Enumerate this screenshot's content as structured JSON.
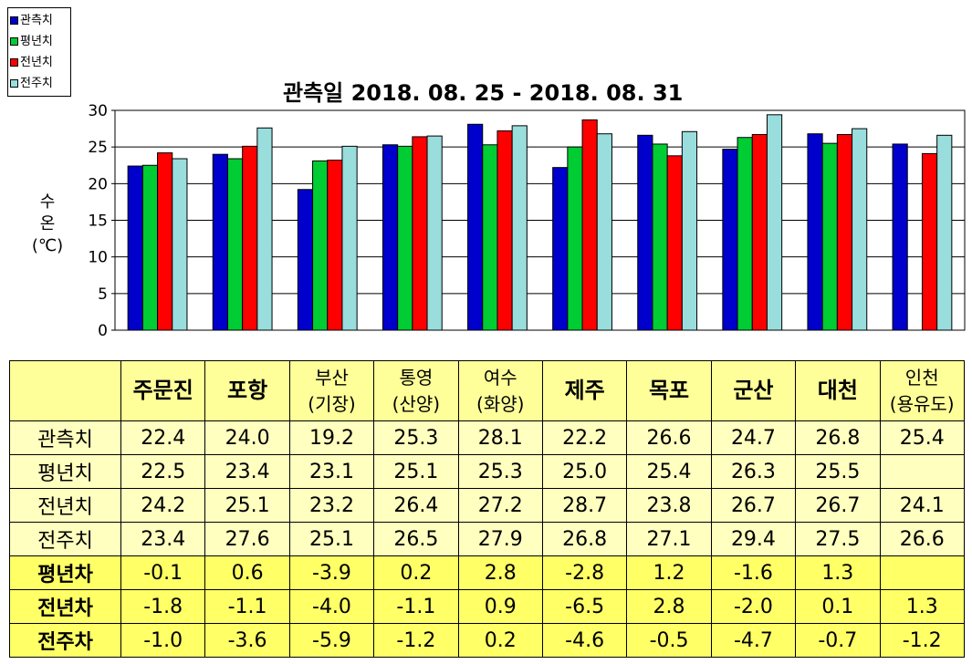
{
  "chart_data": {
    "type": "bar",
    "title": "관측일 2018. 08. 25 - 2018. 08. 31",
    "ylabel": "수\n온\n(℃)",
    "ylim": [
      0,
      30
    ],
    "yticks": [
      0,
      5,
      10,
      15,
      20,
      25,
      30
    ],
    "grid": true,
    "legend_position": "top-left",
    "categories": [
      "주문진",
      "포항",
      "부산(기장)",
      "통영(산양)",
      "여수(화양)",
      "제주",
      "목포",
      "군산",
      "대천",
      "인천(용유도)"
    ],
    "series": [
      {
        "name": "관측치",
        "color": "#0000cc",
        "values": [
          22.4,
          24.0,
          19.2,
          25.3,
          28.1,
          22.2,
          26.6,
          24.7,
          26.8,
          25.4
        ]
      },
      {
        "name": "평년치",
        "color": "#00cc33",
        "values": [
          22.5,
          23.4,
          23.1,
          25.1,
          25.3,
          25.0,
          25.4,
          26.3,
          25.5,
          null
        ]
      },
      {
        "name": "전년치",
        "color": "#ff0000",
        "values": [
          24.2,
          25.1,
          23.2,
          26.4,
          27.2,
          28.7,
          23.8,
          26.7,
          26.7,
          24.1
        ]
      },
      {
        "name": "전주치",
        "color": "#99dddd",
        "values": [
          23.4,
          27.6,
          25.1,
          26.5,
          27.9,
          26.8,
          27.1,
          29.4,
          27.5,
          26.6
        ]
      }
    ]
  },
  "table": {
    "header": [
      {
        "lines": [
          "주문진"
        ],
        "bold": true
      },
      {
        "lines": [
          "포항"
        ],
        "bold": true
      },
      {
        "lines": [
          "부산",
          "(기장)"
        ],
        "bold": false
      },
      {
        "lines": [
          "통영",
          "(산양)"
        ],
        "bold": false
      },
      {
        "lines": [
          "여수",
          "(화양)"
        ],
        "bold": false
      },
      {
        "lines": [
          "제주"
        ],
        "bold": true
      },
      {
        "lines": [
          "목포"
        ],
        "bold": true
      },
      {
        "lines": [
          "군산"
        ],
        "bold": true
      },
      {
        "lines": [
          "대천"
        ],
        "bold": true
      },
      {
        "lines": [
          "인천",
          "(용유도)"
        ],
        "bold": false
      }
    ],
    "rows": [
      {
        "label": "관측치",
        "kind": "obs",
        "values": [
          "22.4",
          "24.0",
          "19.2",
          "25.3",
          "28.1",
          "22.2",
          "26.6",
          "24.7",
          "26.8",
          "25.4"
        ]
      },
      {
        "label": "평년치",
        "kind": "obs",
        "values": [
          "22.5",
          "23.4",
          "23.1",
          "25.1",
          "25.3",
          "25.0",
          "25.4",
          "26.3",
          "25.5",
          ""
        ]
      },
      {
        "label": "전년치",
        "kind": "obs",
        "values": [
          "24.2",
          "25.1",
          "23.2",
          "26.4",
          "27.2",
          "28.7",
          "23.8",
          "26.7",
          "26.7",
          "24.1"
        ]
      },
      {
        "label": "전주치",
        "kind": "obs",
        "values": [
          "23.4",
          "27.6",
          "25.1",
          "26.5",
          "27.9",
          "26.8",
          "27.1",
          "29.4",
          "27.5",
          "26.6"
        ]
      },
      {
        "label": "평년차",
        "kind": "diff",
        "values": [
          "-0.1",
          "0.6",
          "-3.9",
          "0.2",
          "2.8",
          "-2.8",
          "1.2",
          "-1.6",
          "1.3",
          ""
        ]
      },
      {
        "label": "전년차",
        "kind": "diff",
        "values": [
          "-1.8",
          "-1.1",
          "-4.0",
          "-1.1",
          "0.9",
          "-6.5",
          "2.8",
          "-2.0",
          "0.1",
          "1.3"
        ]
      },
      {
        "label": "전주차",
        "kind": "diff",
        "values": [
          "-1.0",
          "-3.6",
          "-5.9",
          "-1.2",
          "0.2",
          "-4.6",
          "-0.5",
          "-4.7",
          "-0.7",
          "-1.2"
        ]
      }
    ]
  }
}
